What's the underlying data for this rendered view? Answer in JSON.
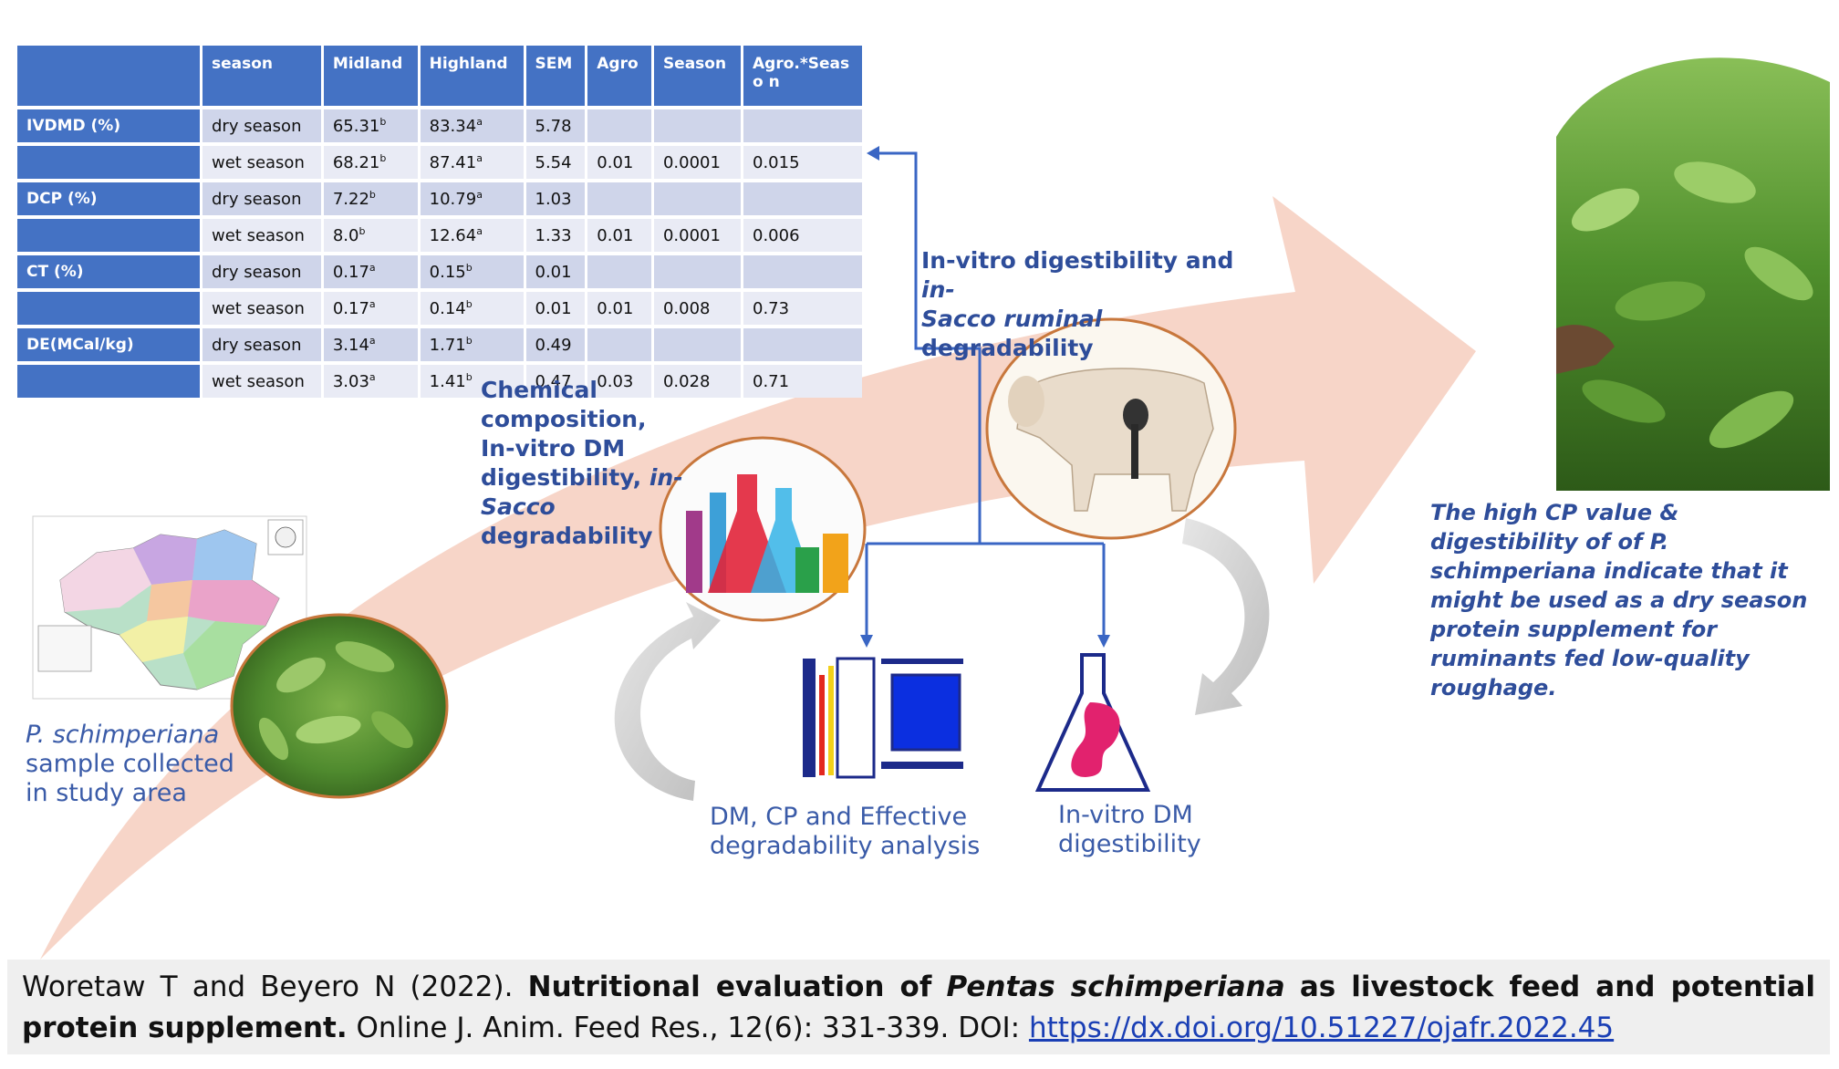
{
  "table": {
    "headers": [
      "season",
      "Midland",
      "Highland",
      "SEM",
      "Agro",
      "Season",
      "Agro.*Seaso n"
    ],
    "rows": [
      {
        "label": "IVDMD (%)",
        "season": "dry season",
        "midland": "65.31",
        "midland_sup": "b",
        "highland": "83.34",
        "highland_sup": "a",
        "sem": "5.78",
        "agro": "",
        "season_p": "",
        "interaction": ""
      },
      {
        "label": "",
        "season": "wet season",
        "midland": "68.21",
        "midland_sup": "b",
        "highland": "87.41",
        "highland_sup": "a",
        "sem": "5.54",
        "agro": "0.01",
        "season_p": "0.0001",
        "interaction": "0.015"
      },
      {
        "label": "DCP (%)",
        "season": "dry season",
        "midland": "7.22",
        "midland_sup": "b",
        "highland": "10.79",
        "highland_sup": "a",
        "sem": "1.03",
        "agro": "",
        "season_p": "",
        "interaction": ""
      },
      {
        "label": "",
        "season": "wet season",
        "midland": "8.0",
        "midland_sup": "b",
        "highland": "12.64",
        "highland_sup": "a",
        "sem": "1.33",
        "agro": "0.01",
        "season_p": "0.0001",
        "interaction": "0.006"
      },
      {
        "label": "CT (%)",
        "season": "dry season",
        "midland": "0.17",
        "midland_sup": "a",
        "highland": "0.15",
        "highland_sup": "b",
        "sem": "0.01",
        "agro": "",
        "season_p": "",
        "interaction": ""
      },
      {
        "label": "",
        "season": "wet season",
        "midland": "0.17",
        "midland_sup": "a",
        "highland": "0.14",
        "highland_sup": "b",
        "sem": "0.01",
        "agro": "0.01",
        "season_p": "0.008",
        "interaction": "0.73"
      },
      {
        "label": "DE(MCal/kg)",
        "season": "dry season",
        "midland": "3.14",
        "midland_sup": "a",
        "highland": "1.71",
        "highland_sup": "b",
        "sem": "0.49",
        "agro": "",
        "season_p": "",
        "interaction": ""
      },
      {
        "label": "",
        "season": "wet season",
        "midland": "3.03",
        "midland_sup": "a",
        "highland": "1.41",
        "highland_sup": "b",
        "sem": "0.47",
        "agro": "0.03",
        "season_p": "0.028",
        "interaction": "0.71"
      }
    ]
  },
  "labels": {
    "chemical_line1": "Chemical composition,",
    "chemical_line2": "In-vitro DM",
    "chemical_line3a": "digestibility,",
    "chemical_line3b": "in-Sacco",
    "chemical_line4": "degradability",
    "invitro_part1": "In-vitro digestibility and",
    "invitro_part2": "in-",
    "invitro_part3": "Sacco ruminal",
    "invitro_part4": "degradability",
    "sample_species": "P. schimperiana",
    "sample_rest": "sample collected in study area",
    "dm_cp": "DM, CP and Effective degradability analysis",
    "ivdm": "In-vitro DM digestibility",
    "conclusion_a": "The high CP value &  digestibility of  of",
    "conclusion_species": "P. schimperiana",
    "conclusion_b": "indicate that it might be used as a dry season protein supplement for ruminants fed low-quality roughage."
  },
  "citation": {
    "authors": "Woretaw T and Beyero N (2022).",
    "title_a": "Nutritional evaluation of",
    "title_species": "Pentas schimperiana",
    "title_b": "as livestock feed and potential protein supplement.",
    "journal": "Online J. Anim. Feed Res., 12(6): 331-339. DOI:",
    "doi": "https://dx.doi.org/10.51227/ojafr.2022.45"
  },
  "colors": {
    "header_blue": "#4472c4",
    "text_blue": "#2e4d9a",
    "arrow_pink": "#f6d3c6",
    "circle_orange": "#c8773c"
  }
}
